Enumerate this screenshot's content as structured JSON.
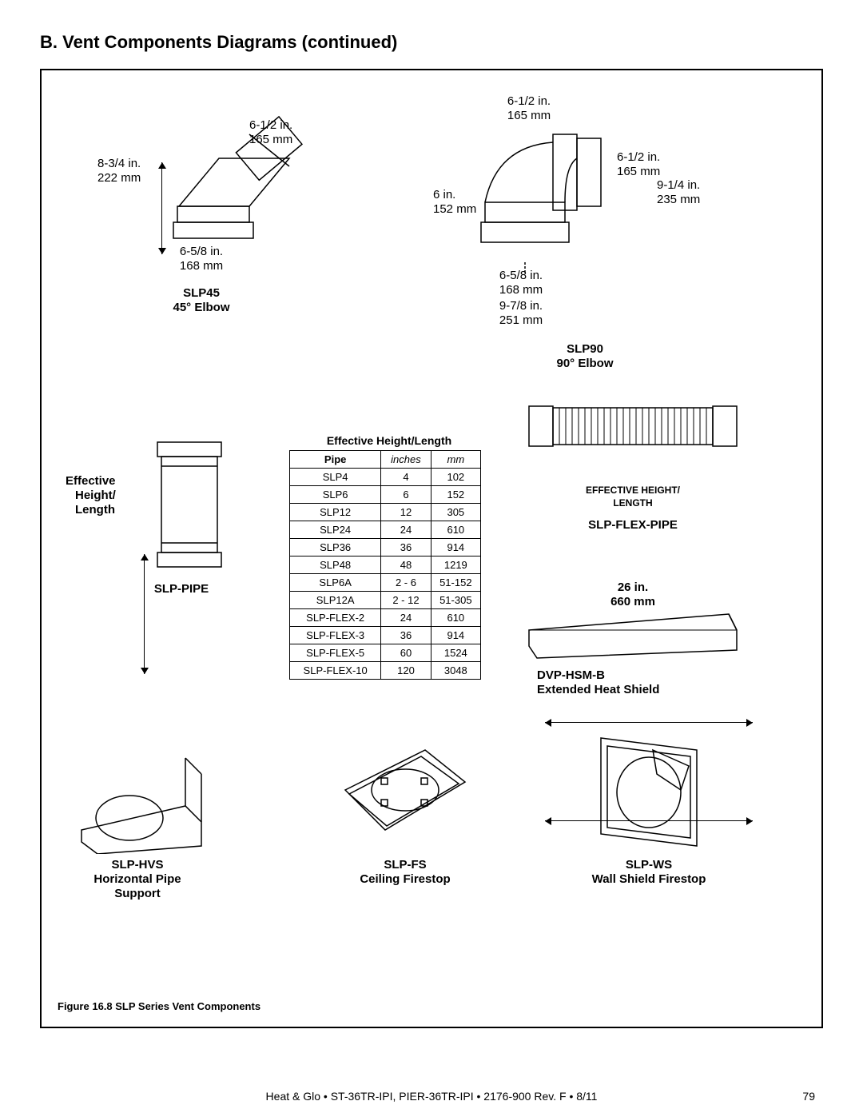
{
  "section_title": "B.  Vent Components Diagrams (continued)",
  "figure_caption": "Figure 16.8  SLP Series Vent Components",
  "footer_text": "Heat & Glo  •  ST-36TR-IPI, PIER-36TR-IPI  •  2176-900  Rev. F  •  8/11",
  "page_number": "79",
  "slp45": {
    "title_line1": "SLP45",
    "title_line2": "45° Elbow",
    "dim_top_in": "6-1/2 in.",
    "dim_top_mm": "165 mm",
    "dim_left_in": "8-3/4 in.",
    "dim_left_mm": "222 mm",
    "dim_bot_in": "6-5/8 in.",
    "dim_bot_mm": "168 mm"
  },
  "slp90": {
    "title_line1": "SLP90",
    "title_line2": "90° Elbow",
    "dim_top_in": "6-1/2 in.",
    "dim_top_mm": "165 mm",
    "dim_right_in": "6-1/2 in.",
    "dim_right_mm": "165 mm",
    "dim_right2_in": "9-1/4 in.",
    "dim_right2_mm": "235 mm",
    "dim_left_in": "6 in.",
    "dim_left_mm": "152 mm",
    "dim_bot1_in": "6-5/8 in.",
    "dim_bot1_mm": "168 mm",
    "dim_bot2_in": "9-7/8 in.",
    "dim_bot2_mm": "251 mm"
  },
  "slp_pipe": {
    "title": "SLP-PIPE",
    "side_label_l1": "Effective",
    "side_label_l2": "Height/",
    "side_label_l3": "Length"
  },
  "table": {
    "title": "Effective Height/Length",
    "col_pipe": "Pipe",
    "col_in": "inches",
    "col_mm": "mm",
    "rows": [
      {
        "p": "SLP4",
        "in": "4",
        "mm": "102"
      },
      {
        "p": "SLP6",
        "in": "6",
        "mm": "152"
      },
      {
        "p": "SLP12",
        "in": "12",
        "mm": "305"
      },
      {
        "p": "SLP24",
        "in": "24",
        "mm": "610"
      },
      {
        "p": "SLP36",
        "in": "36",
        "mm": "914"
      },
      {
        "p": "SLP48",
        "in": "48",
        "mm": "1219"
      },
      {
        "p": "SLP6A",
        "in": "2 - 6",
        "mm": "51-152"
      },
      {
        "p": "SLP12A",
        "in": "2 - 12",
        "mm": "51-305"
      },
      {
        "p": "SLP-FLEX-2",
        "in": "24",
        "mm": "610"
      },
      {
        "p": "SLP-FLEX-3",
        "in": "36",
        "mm": "914"
      },
      {
        "p": "SLP-FLEX-5",
        "in": "60",
        "mm": "1524"
      },
      {
        "p": "SLP-FLEX-10",
        "in": "120",
        "mm": "3048"
      }
    ]
  },
  "flex": {
    "label_l1": "EFFECTIVE HEIGHT/",
    "label_l2": "LENGTH",
    "title": "SLP-FLEX-PIPE"
  },
  "heatshield": {
    "dim_in": "26 in.",
    "dim_mm": "660 mm",
    "title_l1": "DVP-HSM-B",
    "title_l2": "Extended Heat Shield"
  },
  "hvs": {
    "l1": "SLP-HVS",
    "l2": "Horizontal Pipe",
    "l3": "Support"
  },
  "fs": {
    "l1": "SLP-FS",
    "l2": "Ceiling Firestop"
  },
  "ws": {
    "l1": "SLP-WS",
    "l2": "Wall Shield Firestop"
  },
  "colors": {
    "fg": "#000000",
    "bg": "#ffffff"
  }
}
